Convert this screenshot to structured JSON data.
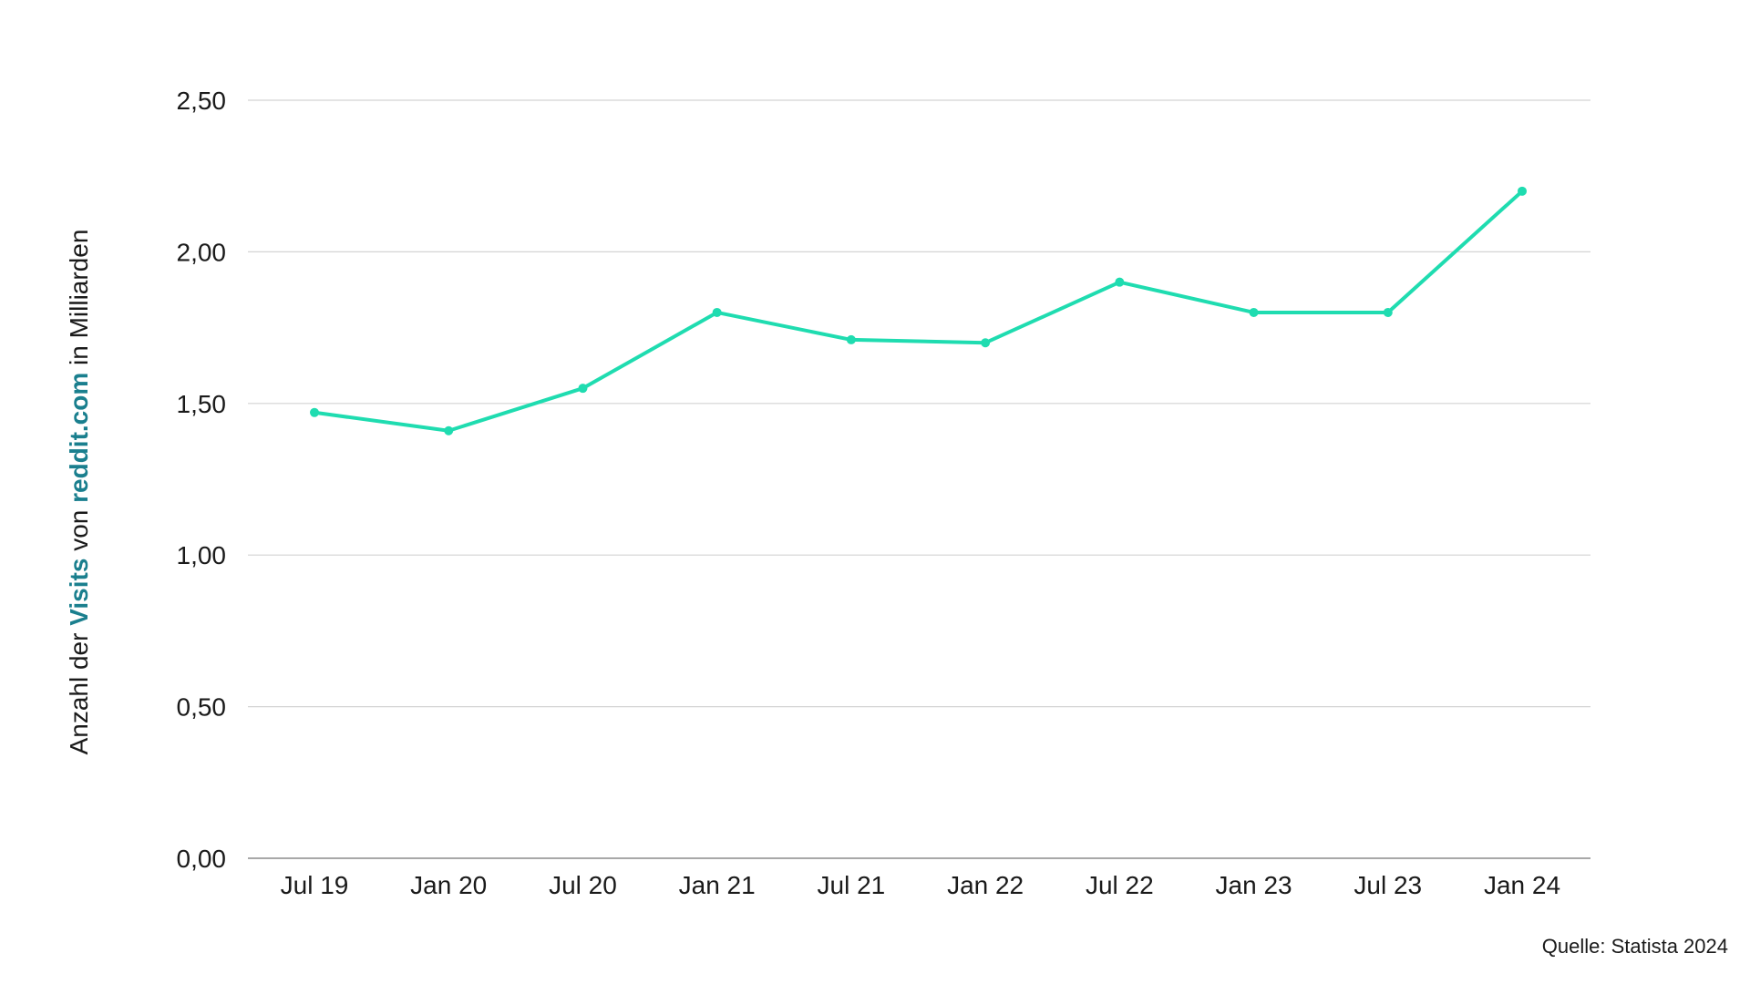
{
  "chart_data": {
    "type": "line",
    "categories": [
      "Jul 19",
      "Jan 20",
      "Jul 20",
      "Jan 21",
      "Jul 21",
      "Jan 22",
      "Jul 22",
      "Jan 23",
      "Jul 23",
      "Jan 24"
    ],
    "series": [
      {
        "values": [
          1.47,
          1.41,
          1.55,
          1.8,
          1.71,
          1.7,
          1.9,
          1.8,
          1.8,
          2.2
        ],
        "color": "#1fdcb0"
      }
    ],
    "y_ticks": [
      "0,00",
      "0,50",
      "1,00",
      "1,50",
      "2,00",
      "2,50"
    ],
    "ylim": [
      0,
      2.5
    ],
    "grid": true,
    "ylabel": {
      "prefix": "Anzahl der ",
      "highlight1": "Visits",
      "middle": " von ",
      "highlight2": "reddit.com",
      "suffix": " in Milliarden"
    },
    "highlight_color": "#1a7f8e"
  },
  "source": "Quelle: Statista 2024"
}
